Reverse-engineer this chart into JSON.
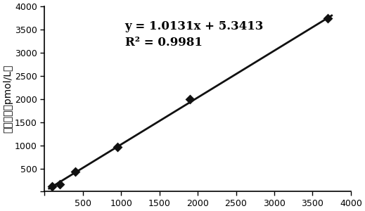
{
  "x_data": [
    100,
    200,
    400,
    950,
    1900,
    3700
  ],
  "y_data": [
    106,
    155,
    430,
    970,
    2000,
    3750
  ],
  "slope": 1.0131,
  "intercept": 5.3413,
  "r_squared": 0.9981,
  "equation_text": "y = 1.0131x + 5.3413",
  "r2_text": "R² = 0.9981",
  "ylabel": "实测浓度（pmol/L）",
  "xlim": [
    0,
    4000
  ],
  "ylim": [
    0,
    4000
  ],
  "xticks": [
    0,
    500,
    1000,
    1500,
    2000,
    2500,
    3000,
    3500,
    4000
  ],
  "yticks": [
    0,
    500,
    1000,
    1500,
    2000,
    2500,
    3000,
    3500,
    4000
  ],
  "marker_color": "#111111",
  "line_color": "#111111",
  "ann_x": 1050,
  "ann_y": 3700,
  "tick_fontsize": 9,
  "ann_fontsize": 12,
  "ylabel_fontsize": 10,
  "line_x_start": 60,
  "line_x_end": 3750
}
